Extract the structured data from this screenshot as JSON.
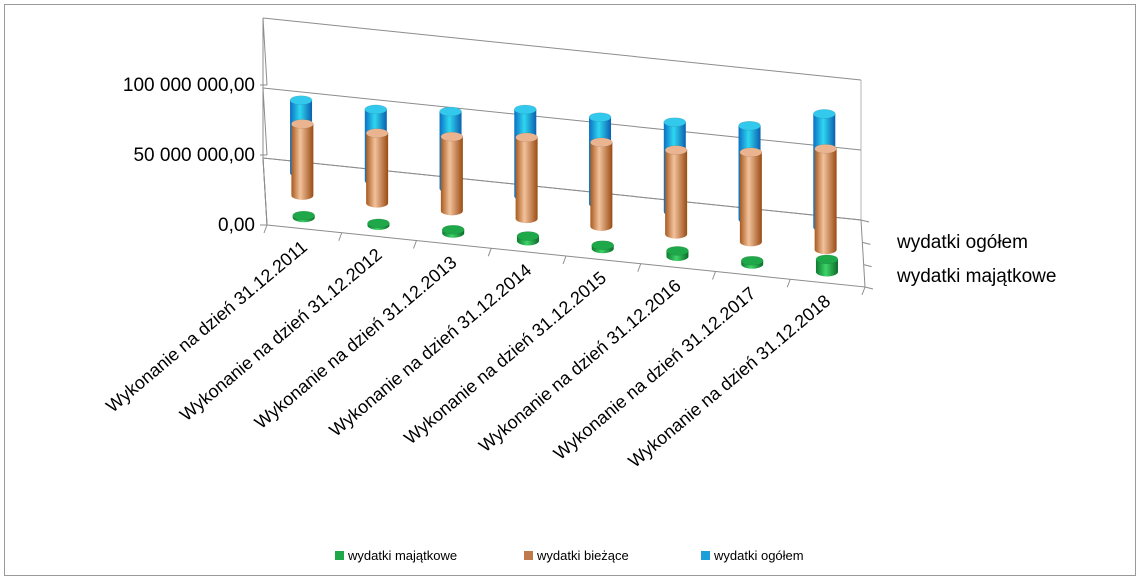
{
  "chart_data": {
    "type": "bar",
    "title": "",
    "xlabel": "",
    "ylabel": "",
    "categories": [
      "Wykonanie na dzień 31.12.2011",
      "Wykonanie na dzień 31.12.2012",
      "Wykonanie na dzień 31.12.2013",
      "Wykonanie na dzień 31.12.2014",
      "Wykonanie na dzień 31.12.2015",
      "Wykonanie na dzień 31.12.2016",
      "Wykonanie na dzień 31.12.2017",
      "Wykonanie na dzień 31.12.2018"
    ],
    "series": [
      {
        "name": "wydatki majątkowe",
        "color": "#1fa84a",
        "values": [
          1500000,
          1500000,
          2500000,
          3500000,
          2500000,
          4000000,
          2500000,
          9000000
        ]
      },
      {
        "name": "wydatki bieżące",
        "color": "#c0794a",
        "values": [
          51000000,
          50000000,
          53000000,
          58000000,
          60000000,
          60000000,
          64000000,
          72000000
        ]
      },
      {
        "name": "wydatki ogółem",
        "color": "#1a9fd8",
        "values": [
          52000000,
          51000000,
          55000000,
          62000000,
          62000000,
          64000000,
          67000000,
          81000000
        ]
      }
    ],
    "depth_labels": [
      "wydatki ogółem",
      "wydatki majątkowe"
    ],
    "ylim": [
      0,
      100000000
    ],
    "y_ticks": [
      "0,00",
      "50 000 000,00",
      "100 000 000,00"
    ],
    "grid": true,
    "legend_position": "bottom"
  }
}
